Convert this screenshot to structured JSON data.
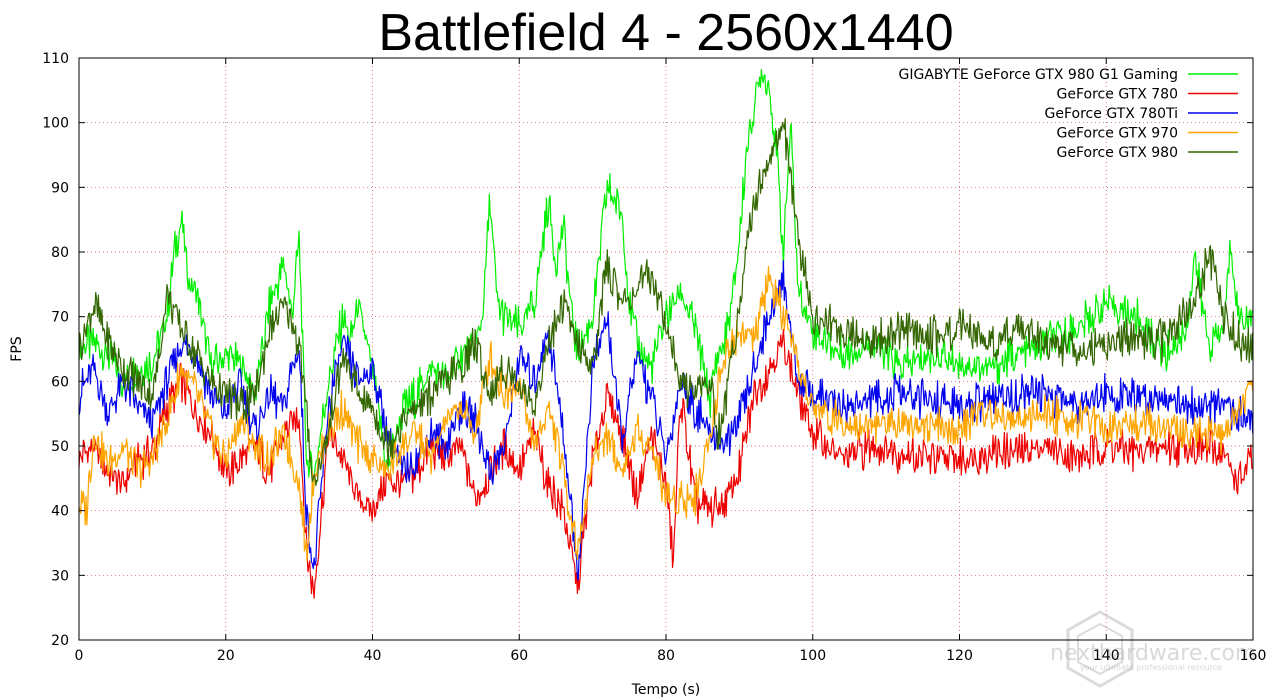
{
  "chart_data": {
    "type": "line",
    "title": "Battlefield 4 - 2560x1440",
    "xlabel": "Tempo (s)",
    "ylabel": "FPS",
    "xlim": [
      0,
      160
    ],
    "ylim": [
      20,
      110
    ],
    "xticks": [
      0,
      20,
      40,
      60,
      80,
      100,
      120,
      140,
      160
    ],
    "yticks": [
      20,
      30,
      40,
      50,
      60,
      70,
      80,
      90,
      100,
      110
    ],
    "grid": true,
    "legend_position": "top-right",
    "series": [
      {
        "name": "GIGABYTE GeForce GTX 980 G1 Gaming",
        "color": "#00ee00",
        "x": [
          0,
          2,
          4,
          6,
          8,
          10,
          12,
          13,
          14,
          15,
          16,
          18,
          20,
          22,
          24,
          26,
          28,
          29,
          30,
          31,
          32,
          34,
          36,
          37,
          38,
          40,
          42,
          44,
          46,
          48,
          50,
          52,
          54,
          55,
          56,
          57,
          58,
          60,
          62,
          64,
          65,
          66,
          67,
          68,
          70,
          72,
          74,
          75,
          76,
          78,
          80,
          82,
          84,
          86,
          87,
          88,
          89,
          90,
          91,
          92,
          93,
          94,
          95,
          96,
          97,
          98,
          100,
          104,
          108,
          112,
          116,
          120,
          124,
          128,
          132,
          136,
          140,
          144,
          148,
          151,
          152,
          153,
          154,
          156,
          157,
          158,
          160
        ],
        "y": [
          65,
          66,
          64,
          60,
          62,
          63,
          70,
          80,
          85,
          75,
          74,
          62,
          64,
          63,
          58,
          72,
          78,
          70,
          82,
          48,
          45,
          60,
          70,
          66,
          72,
          62,
          46,
          55,
          58,
          62,
          60,
          64,
          65,
          70,
          88,
          72,
          70,
          68,
          72,
          88,
          78,
          84,
          72,
          64,
          70,
          90,
          86,
          72,
          66,
          62,
          70,
          74,
          68,
          57,
          64,
          66,
          72,
          82,
          96,
          102,
          108,
          106,
          96,
          80,
          100,
          74,
          68,
          64,
          66,
          62,
          64,
          63,
          62,
          64,
          66,
          68,
          72,
          70,
          64,
          68,
          80,
          72,
          66,
          68,
          82,
          70,
          70
        ]
      },
      {
        "name": "GeForce GTX 780",
        "color": "#ee0000",
        "x": [
          0,
          2,
          4,
          6,
          8,
          10,
          12,
          14,
          16,
          18,
          20,
          22,
          24,
          26,
          28,
          30,
          31,
          32,
          34,
          36,
          38,
          40,
          42,
          44,
          46,
          48,
          50,
          52,
          54,
          56,
          58,
          60,
          62,
          64,
          66,
          68,
          70,
          72,
          74,
          76,
          78,
          80,
          81,
          82,
          84,
          86,
          88,
          90,
          92,
          94,
          96,
          98,
          100,
          104,
          108,
          112,
          116,
          120,
          124,
          128,
          132,
          136,
          140,
          144,
          148,
          152,
          156,
          158,
          160
        ],
        "y": [
          48,
          50,
          46,
          44,
          48,
          49,
          56,
          60,
          55,
          52,
          46,
          48,
          50,
          46,
          52,
          55,
          34,
          27,
          52,
          48,
          42,
          40,
          45,
          44,
          46,
          50,
          48,
          50,
          42,
          46,
          50,
          46,
          52,
          44,
          40,
          28,
          48,
          58,
          52,
          42,
          52,
          44,
          32,
          58,
          41,
          40,
          41,
          46,
          58,
          62,
          66,
          58,
          52,
          48,
          50,
          49,
          48,
          48,
          49,
          49,
          50,
          48,
          50,
          49,
          50,
          50,
          49,
          44,
          48
        ]
      },
      {
        "name": "GeForce GTX 780Ti",
        "color": "#0000ee",
        "x": [
          0,
          2,
          4,
          6,
          8,
          10,
          12,
          14,
          16,
          18,
          20,
          22,
          24,
          26,
          28,
          29,
          30,
          31,
          32,
          34,
          36,
          38,
          40,
          42,
          44,
          46,
          48,
          50,
          52,
          54,
          56,
          58,
          60,
          62,
          64,
          66,
          68,
          70,
          72,
          74,
          76,
          78,
          80,
          82,
          84,
          86,
          88,
          90,
          92,
          94,
          96,
          98,
          100,
          104,
          108,
          112,
          116,
          120,
          124,
          128,
          132,
          136,
          140,
          144,
          148,
          152,
          156,
          160
        ],
        "y": [
          58,
          62,
          55,
          60,
          56,
          54,
          60,
          66,
          64,
          58,
          55,
          60,
          52,
          58,
          56,
          62,
          65,
          40,
          30,
          56,
          66,
          60,
          62,
          52,
          46,
          48,
          52,
          50,
          56,
          54,
          46,
          50,
          64,
          60,
          68,
          52,
          30,
          62,
          70,
          50,
          64,
          58,
          48,
          60,
          56,
          52,
          50,
          54,
          62,
          70,
          76,
          60,
          58,
          56,
          57,
          58,
          57,
          56,
          57,
          58,
          58,
          57,
          58,
          57,
          58,
          56,
          56,
          54
        ]
      },
      {
        "name": "GeForce GTX 970",
        "color": "#ffa500",
        "x": [
          0,
          1,
          2,
          4,
          6,
          8,
          10,
          12,
          14,
          16,
          18,
          20,
          22,
          24,
          26,
          28,
          30,
          31,
          32,
          34,
          36,
          38,
          40,
          42,
          44,
          46,
          48,
          50,
          52,
          54,
          56,
          58,
          60,
          62,
          64,
          66,
          68,
          70,
          72,
          74,
          76,
          78,
          80,
          82,
          84,
          86,
          88,
          90,
          92,
          94,
          96,
          98,
          100,
          104,
          108,
          112,
          116,
          120,
          122,
          124,
          128,
          132,
          136,
          140,
          144,
          148,
          152,
          156,
          158,
          160
        ],
        "y": [
          41,
          40,
          52,
          47,
          50,
          46,
          48,
          54,
          62,
          58,
          52,
          48,
          54,
          50,
          48,
          52,
          44,
          33,
          46,
          52,
          56,
          50,
          48,
          46,
          50,
          52,
          48,
          54,
          56,
          52,
          64,
          58,
          60,
          50,
          56,
          46,
          34,
          48,
          52,
          46,
          52,
          50,
          42,
          42,
          42,
          52,
          64,
          68,
          66,
          76,
          70,
          62,
          56,
          54,
          53,
          54,
          53,
          52,
          55,
          55,
          54,
          55,
          54,
          53,
          54,
          53,
          52,
          52,
          55,
          60
        ]
      },
      {
        "name": "GeForce GTX 980",
        "color": "#336600",
        "x": [
          0,
          2,
          4,
          6,
          8,
          10,
          11,
          12,
          14,
          16,
          18,
          20,
          22,
          24,
          26,
          28,
          30,
          32,
          34,
          36,
          38,
          40,
          42,
          44,
          46,
          48,
          50,
          52,
          54,
          56,
          58,
          60,
          62,
          64,
          66,
          68,
          70,
          72,
          74,
          76,
          78,
          80,
          82,
          84,
          86,
          87,
          88,
          90,
          92,
          94,
          96,
          98,
          100,
          104,
          108,
          112,
          116,
          120,
          124,
          128,
          132,
          136,
          140,
          144,
          148,
          152,
          154,
          156,
          158,
          160
        ],
        "y": [
          65,
          72,
          66,
          62,
          60,
          58,
          64,
          74,
          68,
          64,
          60,
          58,
          56,
          58,
          68,
          72,
          66,
          44,
          52,
          64,
          58,
          56,
          50,
          54,
          56,
          58,
          60,
          62,
          66,
          58,
          62,
          60,
          56,
          66,
          72,
          66,
          62,
          78,
          72,
          74,
          76,
          70,
          59,
          59,
          60,
          52,
          56,
          72,
          88,
          94,
          100,
          82,
          70,
          68,
          66,
          68,
          67,
          68,
          66,
          68,
          66,
          65,
          66,
          67,
          66,
          72,
          80,
          70,
          66,
          65
        ]
      }
    ]
  },
  "watermark": {
    "text": "nexthardware.com",
    "subtext": "your ultimate professional resource"
  }
}
